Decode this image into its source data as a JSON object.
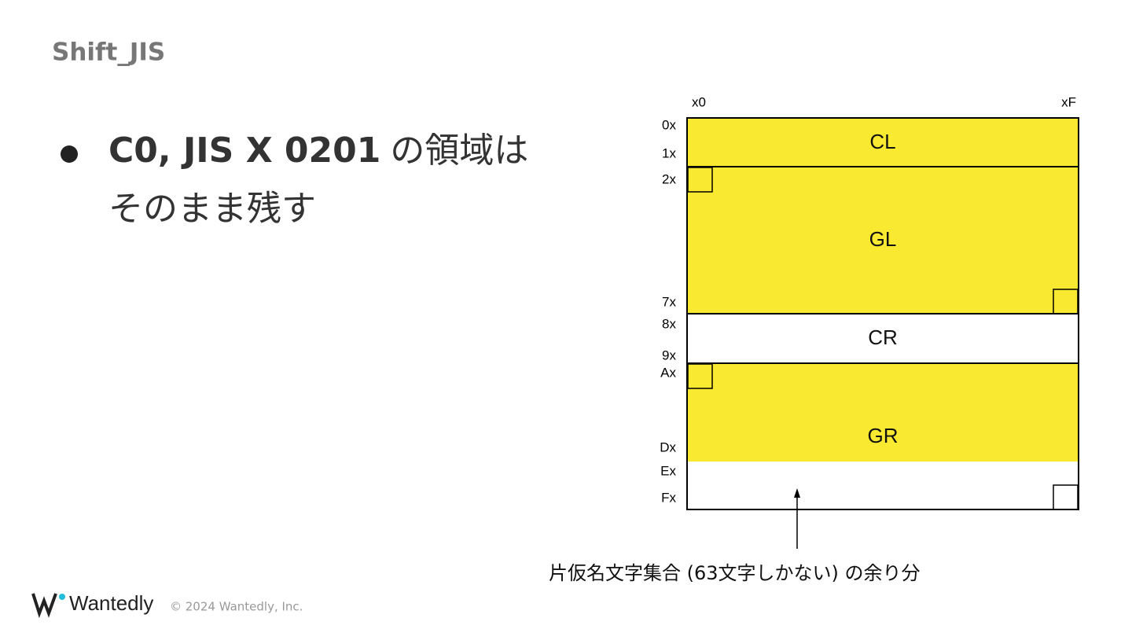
{
  "header": {
    "title": "Shift_JIS"
  },
  "bullet": {
    "bold": "C0, JIS X 0201",
    "rest": "の領域は",
    "line2": "そのまま残す"
  },
  "diagram": {
    "column_labels": [
      "x0",
      "xF"
    ],
    "row_labels": [
      "0x",
      "1x",
      "2x",
      "7x",
      "8x",
      "9x",
      "Ax",
      "Dx",
      "Ex",
      "Fx"
    ],
    "regions": [
      "CL",
      "GL",
      "CR",
      "GR"
    ],
    "annotation": "片仮名文字集合 (63文字しかない) の余り分"
  },
  "footer": {
    "logo": "Wantedly",
    "copyright": "© 2024 Wantedly, Inc."
  }
}
